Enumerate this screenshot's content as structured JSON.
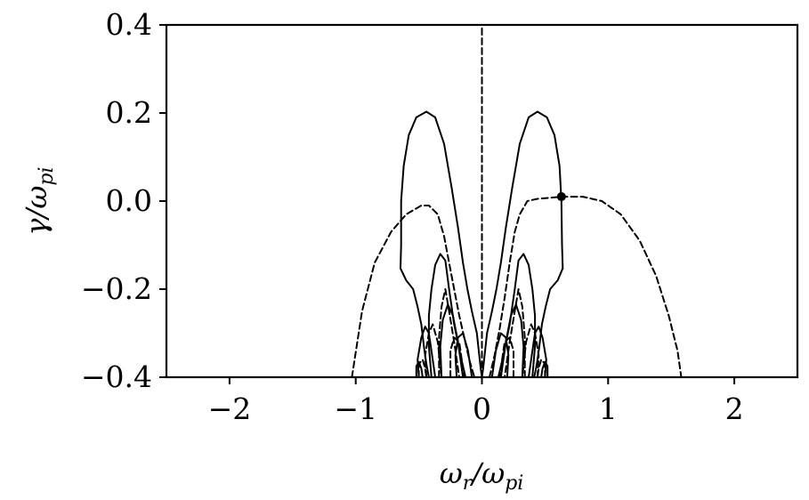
{
  "chart_data": {
    "type": "line",
    "xlabel": "ω_r/ω_pi",
    "ylabel": "γ/ω_pi",
    "xlabel_parts": {
      "main": "ω",
      "sub1": "r",
      "sep": "/ω",
      "sub2": "pi"
    },
    "ylabel_parts": {
      "main": "γ/ω",
      "sub": "pi"
    },
    "xlim": [
      -2.5,
      2.5
    ],
    "ylim": [
      -0.4,
      0.4
    ],
    "xticks": [
      -2,
      -1,
      0,
      1,
      2
    ],
    "yticks": [
      -0.4,
      -0.2,
      0.0,
      0.2,
      0.4
    ],
    "xtick_labels": [
      "−2",
      "−1",
      "0",
      "1",
      "2"
    ],
    "ytick_labels": [
      "−0.4",
      "−0.2",
      "0.0",
      "0.2",
      "0.4"
    ],
    "grid": false,
    "line_color": "#000000",
    "series": [
      {
        "style": "solid",
        "points": [
          [
            -0.645,
            -0.153
          ],
          [
            -0.64,
            -0.1
          ],
          [
            -0.64,
            0.0
          ],
          [
            -0.62,
            0.08
          ],
          [
            -0.58,
            0.15
          ],
          [
            -0.52,
            0.19
          ],
          [
            -0.44,
            0.203
          ],
          [
            -0.37,
            0.19
          ],
          [
            -0.3,
            0.13
          ],
          [
            -0.24,
            0.03
          ],
          [
            -0.19,
            -0.06
          ],
          [
            -0.15,
            -0.14
          ],
          [
            -0.115,
            -0.2
          ],
          [
            -0.08,
            -0.25
          ],
          [
            -0.04,
            -0.3
          ],
          [
            -0.01,
            -0.38
          ],
          [
            0.0,
            -0.4
          ]
        ]
      },
      {
        "style": "solid",
        "points": [
          [
            0.64,
            -0.153
          ],
          [
            0.635,
            -0.1
          ],
          [
            0.63,
            0.0
          ],
          [
            0.615,
            0.08
          ],
          [
            0.575,
            0.15
          ],
          [
            0.515,
            0.19
          ],
          [
            0.44,
            0.203
          ],
          [
            0.37,
            0.19
          ],
          [
            0.3,
            0.13
          ],
          [
            0.24,
            0.03
          ],
          [
            0.19,
            -0.06
          ],
          [
            0.15,
            -0.14
          ],
          [
            0.115,
            -0.2
          ],
          [
            0.08,
            -0.25
          ],
          [
            0.04,
            -0.3
          ],
          [
            0.01,
            -0.38
          ],
          [
            0.0,
            -0.4
          ]
        ]
      },
      {
        "style": "solid",
        "points": [
          [
            -0.645,
            -0.153
          ],
          [
            -0.6,
            -0.18
          ],
          [
            -0.545,
            -0.2
          ],
          [
            -0.51,
            -0.24
          ],
          [
            -0.48,
            -0.28
          ],
          [
            -0.46,
            -0.33
          ],
          [
            -0.44,
            -0.37
          ],
          [
            -0.42,
            -0.4
          ]
        ]
      },
      {
        "style": "solid",
        "points": [
          [
            0.64,
            -0.153
          ],
          [
            0.6,
            -0.18
          ],
          [
            0.54,
            -0.2
          ],
          [
            0.505,
            -0.24
          ],
          [
            0.475,
            -0.28
          ],
          [
            0.455,
            -0.33
          ],
          [
            0.435,
            -0.37
          ],
          [
            0.415,
            -0.4
          ]
        ]
      },
      {
        "style": "solid",
        "points": [
          [
            -0.4,
            -0.4
          ],
          [
            -0.42,
            -0.33
          ],
          [
            -0.42,
            -0.26
          ],
          [
            -0.4,
            -0.2
          ],
          [
            -0.37,
            -0.145
          ],
          [
            -0.33,
            -0.12
          ],
          [
            -0.29,
            -0.135
          ],
          [
            -0.26,
            -0.2
          ],
          [
            -0.22,
            -0.28
          ],
          [
            -0.17,
            -0.35
          ],
          [
            -0.13,
            -0.4
          ]
        ]
      },
      {
        "style": "solid",
        "points": [
          [
            0.4,
            -0.4
          ],
          [
            0.42,
            -0.33
          ],
          [
            0.42,
            -0.26
          ],
          [
            0.4,
            -0.2
          ],
          [
            0.37,
            -0.145
          ],
          [
            0.33,
            -0.12
          ],
          [
            0.29,
            -0.135
          ],
          [
            0.26,
            -0.2
          ],
          [
            0.22,
            -0.28
          ],
          [
            0.17,
            -0.35
          ],
          [
            0.13,
            -0.4
          ]
        ]
      },
      {
        "style": "solid",
        "points": [
          [
            -0.32,
            -0.4
          ],
          [
            -0.33,
            -0.33
          ],
          [
            -0.31,
            -0.27
          ],
          [
            -0.27,
            -0.235
          ],
          [
            -0.23,
            -0.26
          ],
          [
            -0.19,
            -0.32
          ],
          [
            -0.15,
            -0.4
          ]
        ]
      },
      {
        "style": "solid",
        "points": [
          [
            0.32,
            -0.4
          ],
          [
            0.33,
            -0.33
          ],
          [
            0.31,
            -0.27
          ],
          [
            0.27,
            -0.235
          ],
          [
            0.23,
            -0.26
          ],
          [
            0.19,
            -0.32
          ],
          [
            0.15,
            -0.4
          ]
        ]
      },
      {
        "style": "solid",
        "points": [
          [
            -0.5,
            -0.4
          ],
          [
            -0.51,
            -0.36
          ],
          [
            -0.48,
            -0.31
          ],
          [
            -0.45,
            -0.285
          ],
          [
            -0.42,
            -0.3
          ],
          [
            -0.39,
            -0.36
          ],
          [
            -0.37,
            -0.4
          ]
        ]
      },
      {
        "style": "solid",
        "points": [
          [
            0.5,
            -0.4
          ],
          [
            0.51,
            -0.36
          ],
          [
            0.48,
            -0.31
          ],
          [
            0.45,
            -0.285
          ],
          [
            0.42,
            -0.3
          ],
          [
            0.39,
            -0.36
          ],
          [
            0.37,
            -0.4
          ]
        ]
      },
      {
        "style": "solid",
        "points": [
          [
            -0.2,
            -0.4
          ],
          [
            -0.21,
            -0.35
          ],
          [
            -0.19,
            -0.31
          ],
          [
            -0.15,
            -0.3
          ],
          [
            -0.11,
            -0.34
          ],
          [
            -0.08,
            -0.4
          ]
        ]
      },
      {
        "style": "solid",
        "points": [
          [
            0.2,
            -0.4
          ],
          [
            0.21,
            -0.35
          ],
          [
            0.19,
            -0.31
          ],
          [
            0.15,
            -0.3
          ],
          [
            0.11,
            -0.34
          ],
          [
            0.08,
            -0.4
          ]
        ]
      },
      {
        "style": "solid",
        "points": [
          [
            -0.52,
            -0.4
          ],
          [
            -0.52,
            -0.375
          ],
          [
            -0.5,
            -0.365
          ],
          [
            -0.48,
            -0.38
          ],
          [
            -0.47,
            -0.4
          ]
        ]
      },
      {
        "style": "solid",
        "points": [
          [
            0.52,
            -0.4
          ],
          [
            0.52,
            -0.375
          ],
          [
            0.5,
            -0.365
          ],
          [
            0.48,
            -0.38
          ],
          [
            0.47,
            -0.4
          ]
        ]
      },
      {
        "style": "dashed",
        "points": [
          [
            0.0,
            -0.4
          ],
          [
            0.0,
            0.4
          ]
        ]
      },
      {
        "style": "dashed",
        "points": [
          [
            -1.03,
            -0.4
          ],
          [
            -0.95,
            -0.25
          ],
          [
            -0.85,
            -0.14
          ],
          [
            -0.72,
            -0.07
          ],
          [
            -0.6,
            -0.03
          ],
          [
            -0.48,
            -0.01
          ],
          [
            -0.42,
            -0.01
          ],
          [
            -0.35,
            -0.03
          ],
          [
            -0.3,
            -0.08
          ],
          [
            -0.26,
            -0.14
          ],
          [
            -0.22,
            -0.2
          ],
          [
            -0.18,
            -0.26
          ],
          [
            -0.14,
            -0.31
          ],
          [
            -0.1,
            -0.36
          ],
          [
            -0.06,
            -0.4
          ]
        ]
      },
      {
        "style": "dashed",
        "points": [
          [
            0.06,
            -0.4
          ],
          [
            0.1,
            -0.35
          ],
          [
            0.14,
            -0.29
          ],
          [
            0.18,
            -0.22
          ],
          [
            0.22,
            -0.14
          ],
          [
            0.26,
            -0.07
          ],
          [
            0.3,
            -0.03
          ],
          [
            0.36,
            0.0
          ],
          [
            0.44,
            0.005
          ],
          [
            0.63,
            0.01
          ],
          [
            0.8,
            0.01
          ],
          [
            0.95,
            0.0
          ],
          [
            1.1,
            -0.03
          ],
          [
            1.25,
            -0.09
          ],
          [
            1.38,
            -0.17
          ],
          [
            1.48,
            -0.26
          ],
          [
            1.55,
            -0.34
          ],
          [
            1.58,
            -0.4
          ]
        ]
      },
      {
        "style": "dashed",
        "points": [
          [
            -0.34,
            -0.4
          ],
          [
            -0.34,
            -0.31
          ],
          [
            -0.32,
            -0.24
          ],
          [
            -0.29,
            -0.2
          ],
          [
            -0.26,
            -0.25
          ],
          [
            -0.22,
            -0.32
          ],
          [
            -0.18,
            -0.4
          ]
        ]
      },
      {
        "style": "dashed",
        "points": [
          [
            0.34,
            -0.4
          ],
          [
            0.34,
            -0.31
          ],
          [
            0.32,
            -0.24
          ],
          [
            0.29,
            -0.2
          ],
          [
            0.26,
            -0.25
          ],
          [
            0.22,
            -0.32
          ],
          [
            0.18,
            -0.4
          ]
        ]
      },
      {
        "style": "dashed",
        "points": [
          [
            -0.44,
            -0.4
          ],
          [
            -0.45,
            -0.35
          ],
          [
            -0.42,
            -0.3
          ],
          [
            -0.39,
            -0.28
          ],
          [
            -0.35,
            -0.32
          ],
          [
            -0.32,
            -0.4
          ]
        ]
      },
      {
        "style": "dashed",
        "points": [
          [
            0.44,
            -0.4
          ],
          [
            0.45,
            -0.35
          ],
          [
            0.42,
            -0.3
          ],
          [
            0.39,
            -0.28
          ],
          [
            0.35,
            -0.32
          ],
          [
            0.32,
            -0.4
          ]
        ]
      },
      {
        "style": "dashed",
        "points": [
          [
            -0.25,
            -0.4
          ],
          [
            -0.25,
            -0.34
          ],
          [
            -0.22,
            -0.31
          ],
          [
            -0.18,
            -0.32
          ],
          [
            -0.14,
            -0.4
          ]
        ]
      },
      {
        "style": "dashed",
        "points": [
          [
            0.25,
            -0.4
          ],
          [
            0.25,
            -0.34
          ],
          [
            0.22,
            -0.31
          ],
          [
            0.18,
            -0.32
          ],
          [
            0.14,
            -0.4
          ]
        ]
      },
      {
        "style": "dashed",
        "points": [
          [
            -0.5,
            -0.4
          ],
          [
            -0.5,
            -0.37
          ],
          [
            -0.47,
            -0.36
          ],
          [
            -0.45,
            -0.38
          ],
          [
            -0.44,
            -0.4
          ]
        ]
      },
      {
        "style": "dashed",
        "points": [
          [
            0.5,
            -0.4
          ],
          [
            0.5,
            -0.37
          ],
          [
            0.47,
            -0.36
          ],
          [
            0.45,
            -0.38
          ],
          [
            0.44,
            -0.4
          ]
        ]
      }
    ],
    "marker": {
      "x": 0.63,
      "y": 0.01
    }
  }
}
